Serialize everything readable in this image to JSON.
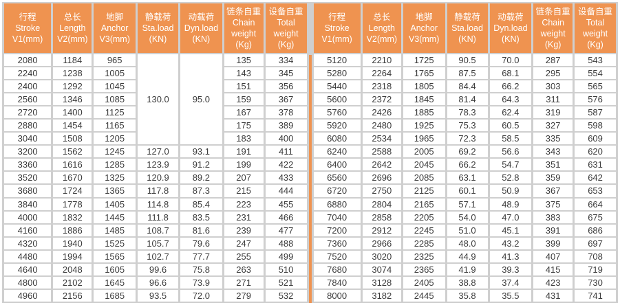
{
  "colors": {
    "header_bg": "#EF9350",
    "divider_accent": "#EF9350",
    "grid_line": "#CFCFCF",
    "cell_bg": "#FFFFFF",
    "header_text": "#FFFFFF",
    "cell_text": "#3B3B3B"
  },
  "columns": [
    {
      "lines": [
        "行程",
        "Stroke",
        "V1(mm)"
      ]
    },
    {
      "lines": [
        "总长",
        "Length",
        "V2(mm)"
      ]
    },
    {
      "lines": [
        "地脚",
        "Anchor",
        "V3(mm)"
      ]
    },
    {
      "lines": [
        "静载荷",
        "Sta.load",
        "(KN)"
      ]
    },
    {
      "lines": [
        "动载荷",
        "Dyn.load",
        "(KN)"
      ]
    },
    {
      "lines": [
        "链条自重",
        "Chain",
        "weight",
        "(Kg)"
      ]
    },
    {
      "lines": [
        "设备自重",
        "Total",
        "weight",
        "(Kg)"
      ]
    }
  ],
  "left_rows": [
    [
      "2080",
      "1184",
      "965",
      {
        "text": "130.0",
        "rowspan": 7
      },
      {
        "text": "95.0",
        "rowspan": 7
      },
      "135",
      "334"
    ],
    [
      "2240",
      "1238",
      "1005",
      null,
      null,
      "143",
      "345"
    ],
    [
      "2400",
      "1292",
      "1045",
      null,
      null,
      "151",
      "356"
    ],
    [
      "2560",
      "1346",
      "1085",
      null,
      null,
      "159",
      "367"
    ],
    [
      "2720",
      "1400",
      "1125",
      null,
      null,
      "167",
      "378"
    ],
    [
      "2880",
      "1454",
      "1165",
      null,
      null,
      "175",
      "389"
    ],
    [
      "3040",
      "1508",
      "1205",
      null,
      null,
      "183",
      "400"
    ],
    [
      "3200",
      "1562",
      "1245",
      "127.0",
      "93.1",
      "191",
      "411"
    ],
    [
      "3360",
      "1616",
      "1285",
      "123.9",
      "91.2",
      "199",
      "422"
    ],
    [
      "3520",
      "1670",
      "1325",
      "120.9",
      "89.2",
      "207",
      "433"
    ],
    [
      "3680",
      "1724",
      "1365",
      "117.8",
      "87.3",
      "215",
      "444"
    ],
    [
      "3840",
      "1778",
      "1405",
      "114.8",
      "85.4",
      "223",
      "455"
    ],
    [
      "4000",
      "1832",
      "1445",
      "111.8",
      "83.5",
      "231",
      "466"
    ],
    [
      "4160",
      "1886",
      "1485",
      "108.7",
      "81.6",
      "239",
      "477"
    ],
    [
      "4320",
      "1940",
      "1525",
      "105.7",
      "79.6",
      "247",
      "488"
    ],
    [
      "4480",
      "1994",
      "1565",
      "102.7",
      "77.7",
      "255",
      "499"
    ],
    [
      "4640",
      "2048",
      "1605",
      "99.6",
      "75.8",
      "263",
      "510"
    ],
    [
      "4800",
      "2102",
      "1645",
      "96.6",
      "73.9",
      "271",
      "521"
    ],
    [
      "4960",
      "2156",
      "1685",
      "93.5",
      "72.0",
      "279",
      "532"
    ]
  ],
  "right_rows": [
    [
      "5120",
      "2210",
      "1725",
      "90.5",
      "70.0",
      "287",
      "543"
    ],
    [
      "5280",
      "2264",
      "1765",
      "87.5",
      "68.1",
      "295",
      "554"
    ],
    [
      "5440",
      "2318",
      "1805",
      "84.4",
      "66.2",
      "303",
      "565"
    ],
    [
      "5600",
      "2372",
      "1845",
      "81.4",
      "64.3",
      "311",
      "576"
    ],
    [
      "5760",
      "2426",
      "1885",
      "78.3",
      "62.4",
      "319",
      "587"
    ],
    [
      "5920",
      "2480",
      "1925",
      "75.3",
      "60.5",
      "327",
      "598"
    ],
    [
      "6080",
      "2534",
      "1965",
      "72.3",
      "58.5",
      "335",
      "609"
    ],
    [
      "6240",
      "2588",
      "2005",
      "69.2",
      "56.6",
      "343",
      "620"
    ],
    [
      "6400",
      "2642",
      "2045",
      "66.2",
      "54.7",
      "351",
      "631"
    ],
    [
      "6560",
      "2696",
      "2085",
      "63.1",
      "52.8",
      "359",
      "642"
    ],
    [
      "6720",
      "2750",
      "2125",
      "60.1",
      "50.9",
      "367",
      "653"
    ],
    [
      "6880",
      "2804",
      "2165",
      "57.1",
      "48.9",
      "375",
      "664"
    ],
    [
      "7040",
      "2858",
      "2205",
      "54.0",
      "47.0",
      "383",
      "675"
    ],
    [
      "7200",
      "2912",
      "2245",
      "51.0",
      "45.1",
      "391",
      "686"
    ],
    [
      "7360",
      "2966",
      "2285",
      "48.0",
      "43.2",
      "399",
      "697"
    ],
    [
      "7520",
      "3020",
      "2325",
      "44.9",
      "41.3",
      "407",
      "708"
    ],
    [
      "7680",
      "3074",
      "2365",
      "41.9",
      "39.3",
      "415",
      "719"
    ],
    [
      "7840",
      "3128",
      "2405",
      "38.8",
      "37.4",
      "423",
      "730"
    ],
    [
      "8000",
      "3182",
      "2445",
      "35.8",
      "35.5",
      "431",
      "741"
    ]
  ]
}
